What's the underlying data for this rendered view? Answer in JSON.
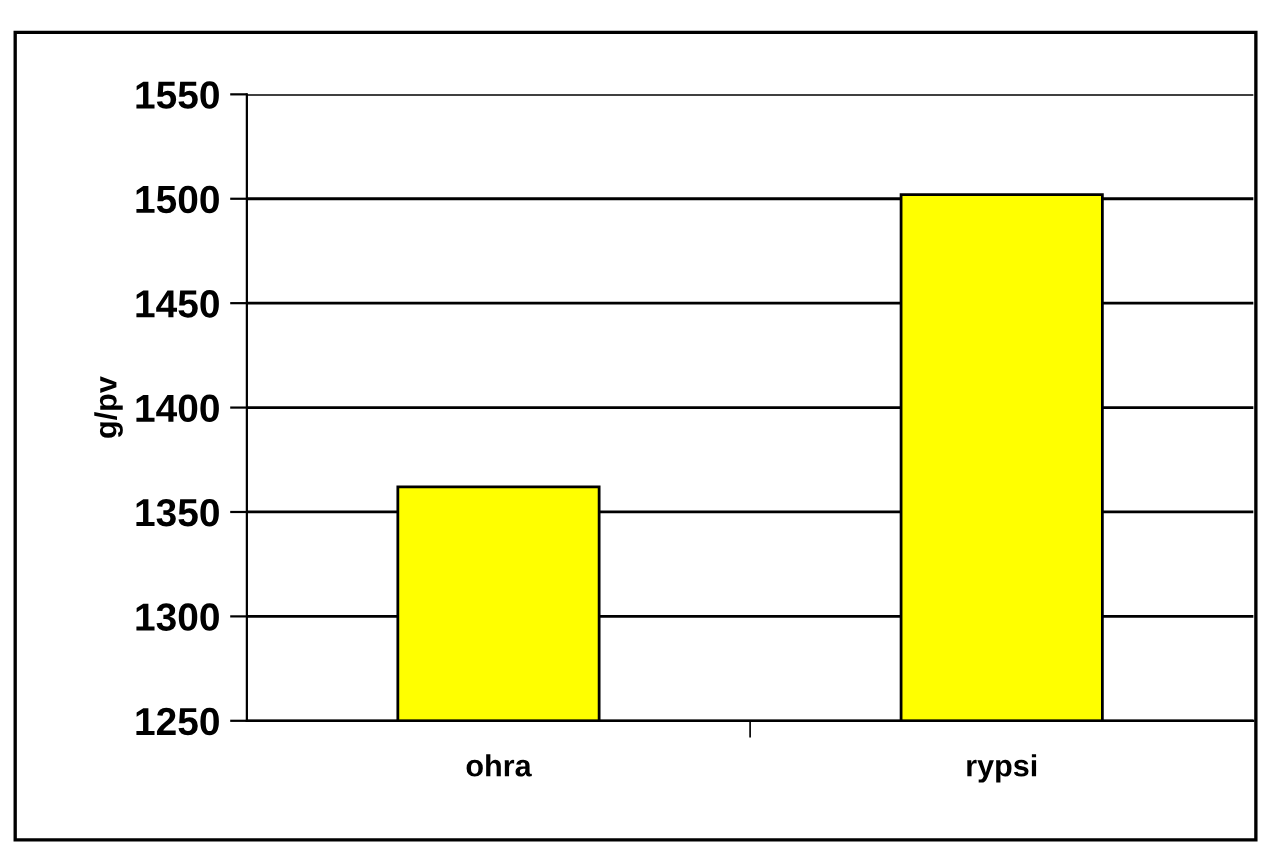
{
  "chart_data": {
    "type": "bar",
    "ylabel": "g/pv",
    "categories": [
      "ohra",
      "rypsi"
    ],
    "values": [
      1362,
      1502
    ],
    "color": "#ffff00",
    "ylim": [
      1250,
      1550
    ],
    "yticks": [
      1250,
      1300,
      1350,
      1400,
      1450,
      1500,
      1550
    ],
    "grid": "y"
  }
}
